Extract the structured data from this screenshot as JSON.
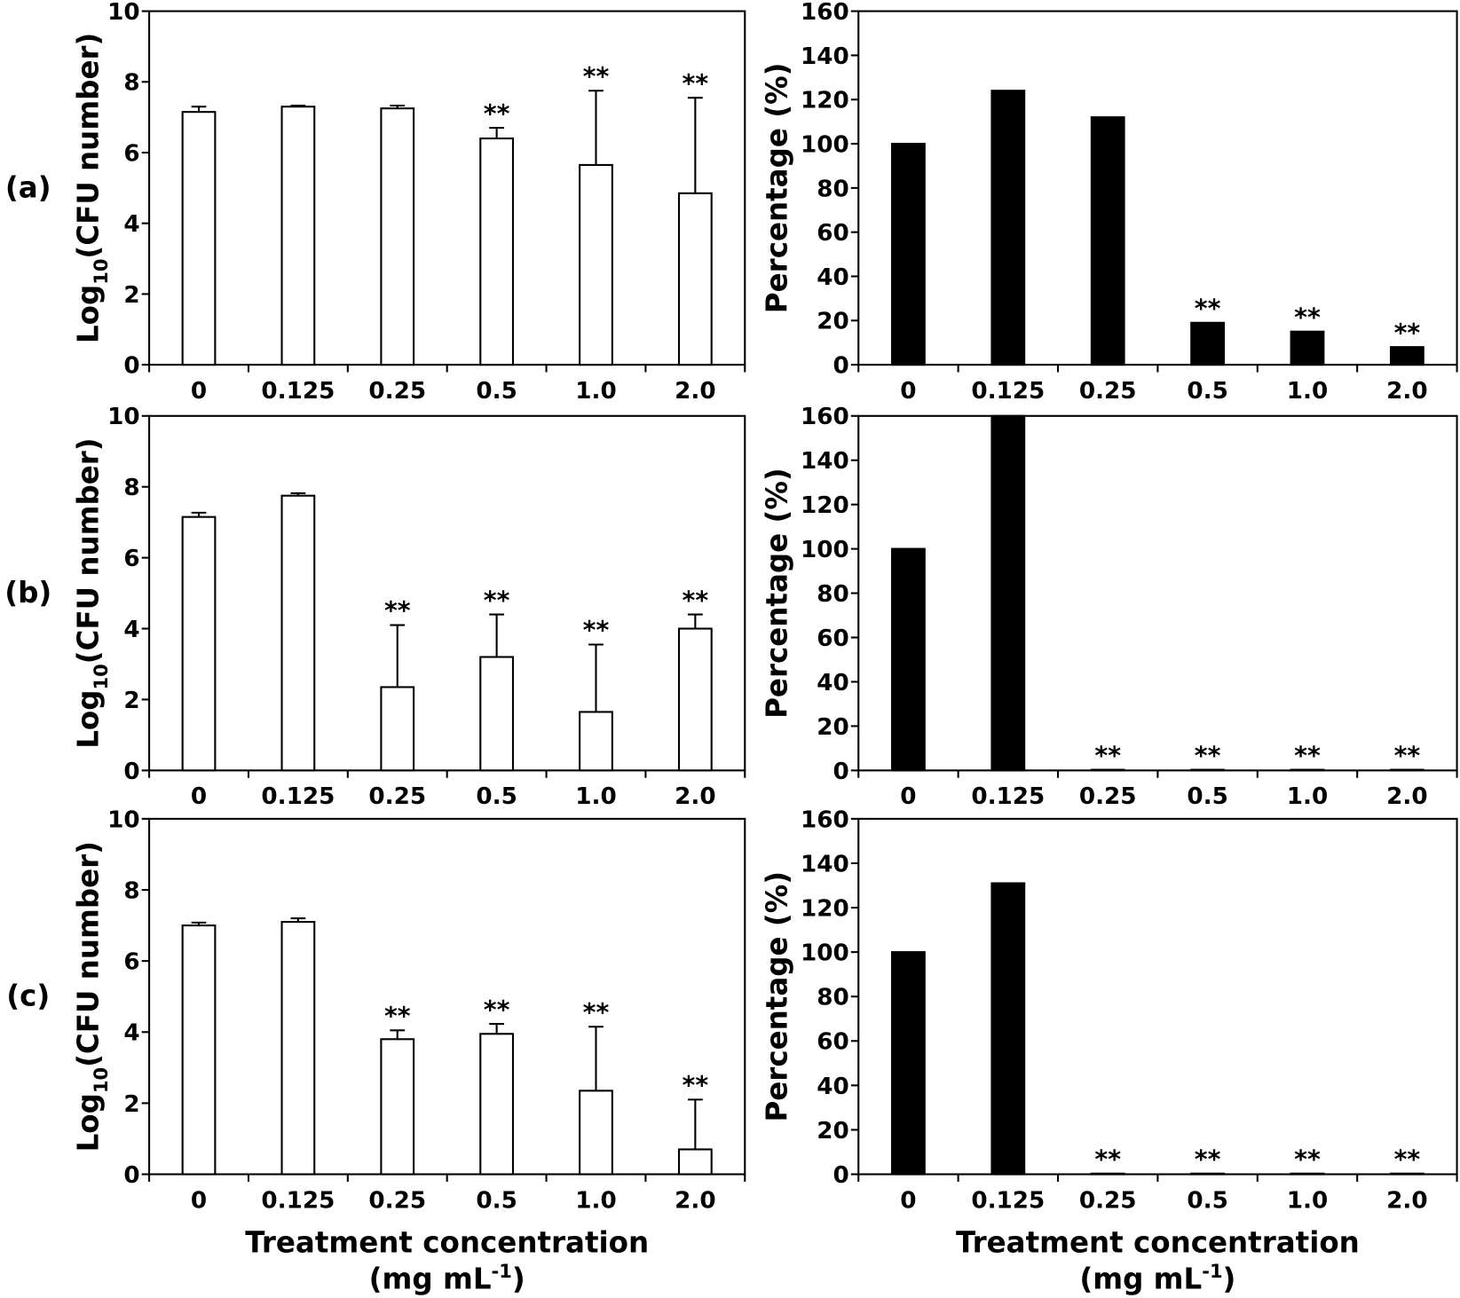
{
  "chart_data": [
    {
      "type": "bar",
      "panel_label": "(a)",
      "y_label": [
        "Log",
        "10",
        "(CFU number)"
      ],
      "categories": [
        "0",
        "0.125",
        "0.25",
        "0.5",
        "1.0",
        "2.0"
      ],
      "values": [
        7.15,
        7.3,
        7.25,
        6.4,
        5.65,
        4.85
      ],
      "errors": [
        0.15,
        0.03,
        0.08,
        0.3,
        2.1,
        2.7
      ],
      "annotations": [
        null,
        null,
        null,
        "**",
        "**",
        "**"
      ],
      "color": "#ffffff",
      "ylim": [
        0,
        10
      ],
      "yticks": [
        0,
        2,
        4,
        6,
        8,
        10
      ]
    },
    {
      "type": "bar",
      "y_label": [
        "Percentage (%)"
      ],
      "categories": [
        "0",
        "0.125",
        "0.25",
        "0.5",
        "1.0",
        "2.0"
      ],
      "values": [
        100,
        124,
        112,
        19,
        15,
        8
      ],
      "annotations": [
        null,
        null,
        null,
        "**",
        "**",
        "**"
      ],
      "color": "#000000",
      "ylim": [
        0,
        160
      ],
      "yticks": [
        0,
        20,
        40,
        60,
        80,
        100,
        120,
        140,
        160
      ]
    },
    {
      "type": "bar",
      "panel_label": "(b)",
      "y_label": [
        "Log",
        "10",
        "(CFU number)"
      ],
      "categories": [
        "0",
        "0.125",
        "0.25",
        "0.5",
        "1.0",
        "2.0"
      ],
      "values": [
        7.15,
        7.75,
        2.35,
        3.2,
        1.65,
        4.0
      ],
      "errors": [
        0.12,
        0.07,
        1.75,
        1.2,
        1.9,
        0.4
      ],
      "annotations": [
        null,
        null,
        "**",
        "**",
        "**",
        "**"
      ],
      "color": "#ffffff",
      "ylim": [
        0,
        10
      ],
      "yticks": [
        0,
        2,
        4,
        6,
        8,
        10
      ]
    },
    {
      "type": "bar",
      "y_label": [
        "Percentage (%)"
      ],
      "categories": [
        "0",
        "0.125",
        "0.25",
        "0.5",
        "1.0",
        "2.0"
      ],
      "values": [
        100,
        160,
        0.3,
        0.3,
        0.3,
        0.3
      ],
      "annotations": [
        null,
        null,
        "**",
        "**",
        "**",
        "**"
      ],
      "color": "#000000",
      "ylim": [
        0,
        160
      ],
      "yticks": [
        0,
        20,
        40,
        60,
        80,
        100,
        120,
        140,
        160
      ]
    },
    {
      "type": "bar",
      "panel_label": "(c)",
      "y_label": [
        "Log",
        "10",
        "(CFU number)"
      ],
      "x_label": "Treatment concentration",
      "x_label_unit": [
        "(mg mL",
        "-1",
        ")"
      ],
      "categories": [
        "0",
        "0.125",
        "0.25",
        "0.5",
        "1.0",
        "2.0"
      ],
      "values": [
        7.0,
        7.1,
        3.8,
        3.95,
        2.35,
        0.7
      ],
      "errors": [
        0.08,
        0.1,
        0.25,
        0.28,
        1.8,
        1.4
      ],
      "annotations": [
        null,
        null,
        "**",
        "**",
        "**",
        "**"
      ],
      "color": "#ffffff",
      "ylim": [
        0,
        10
      ],
      "yticks": [
        0,
        2,
        4,
        6,
        8,
        10
      ]
    },
    {
      "type": "bar",
      "y_label": [
        "Percentage (%)"
      ],
      "x_label": "Treatment concentration",
      "x_label_unit": [
        "(mg mL",
        "-1",
        ")"
      ],
      "categories": [
        "0",
        "0.125",
        "0.25",
        "0.5",
        "1.0",
        "2.0"
      ],
      "values": [
        100,
        131,
        0.3,
        0.3,
        0.3,
        0.3
      ],
      "annotations": [
        null,
        null,
        "**",
        "**",
        "**",
        "**"
      ],
      "color": "#000000",
      "ylim": [
        0,
        160
      ],
      "yticks": [
        0,
        20,
        40,
        60,
        80,
        100,
        120,
        140,
        160
      ]
    }
  ]
}
